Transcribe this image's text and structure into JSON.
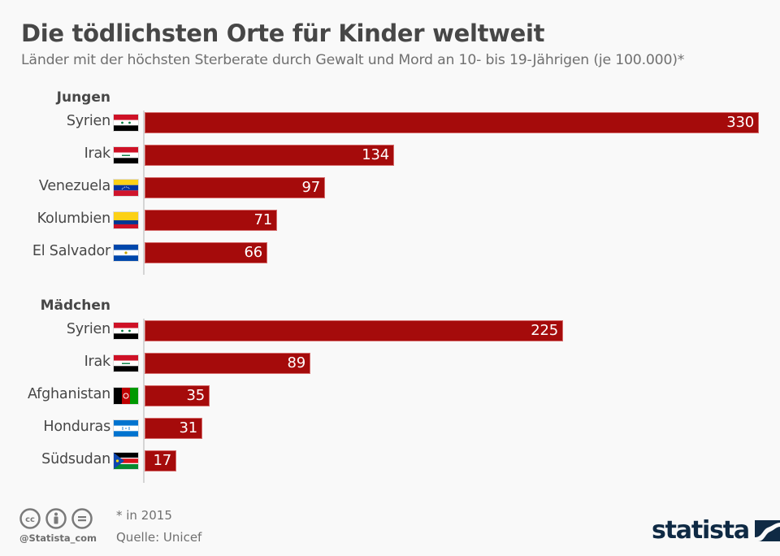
{
  "header": {
    "title": "Die tödlichsten Orte für Kinder weltweit",
    "subtitle": "Länder mit der höchsten Sterberate durch Gewalt und Mord an 10- bis 19-Jährigen (je 100.000)*"
  },
  "chart_data": {
    "type": "bar",
    "orientation": "horizontal",
    "title": "Die tödlichsten Orte für Kinder weltweit",
    "subtitle": "Länder mit der höchsten Sterberate durch Gewalt und Mord an 10- bis 19-Jährigen (je 100.000)*",
    "xlim": [
      0,
      330
    ],
    "bar_color": "#a50b0b",
    "groups": [
      {
        "name": "Jungen",
        "categories": [
          "Syrien",
          "Irak",
          "Venezuela",
          "Kolumbien",
          "El Salvador"
        ],
        "flags": [
          "syria",
          "iraq",
          "venezuela",
          "colombia",
          "el-salvador"
        ],
        "values": [
          330,
          134,
          97,
          71,
          66
        ]
      },
      {
        "name": "Mädchen",
        "categories": [
          "Syrien",
          "Irak",
          "Afghanistan",
          "Honduras",
          "Südsudan"
        ],
        "flags": [
          "syria",
          "iraq",
          "afghanistan",
          "honduras",
          "south-sudan"
        ],
        "values": [
          225,
          89,
          35,
          31,
          17
        ]
      }
    ]
  },
  "footer": {
    "note": "* in 2015",
    "source": "Quelle: Unicef",
    "handle": "@Statista_com",
    "license_icons": [
      "cc-icon",
      "by-attribution-icon",
      "nd-noderivs-icon"
    ],
    "logo_text": "statista",
    "logo_color": "#0f2a44"
  }
}
